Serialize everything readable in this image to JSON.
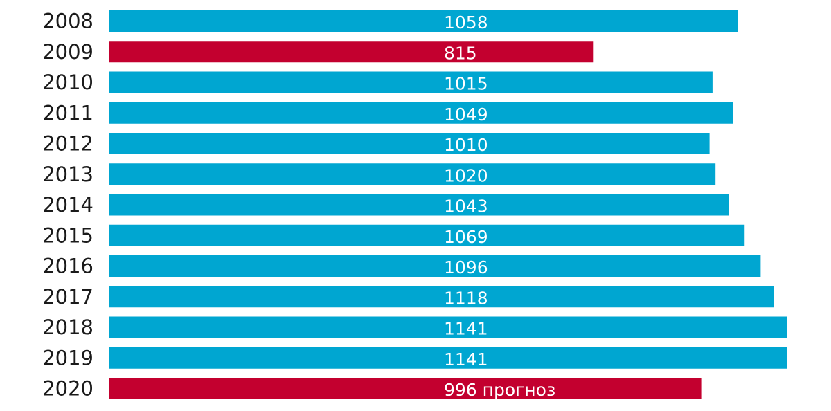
{
  "chart_data": {
    "type": "bar",
    "orientation": "horizontal",
    "categories": [
      "2008",
      "2009",
      "2010",
      "2011",
      "2012",
      "2013",
      "2014",
      "2015",
      "2016",
      "2017",
      "2018",
      "2019",
      "2020"
    ],
    "values": [
      1058,
      815,
      1015,
      1049,
      1010,
      1020,
      1043,
      1069,
      1096,
      1118,
      1141,
      1141,
      996
    ],
    "value_labels": [
      "1058",
      "815",
      "1015",
      "1049",
      "1010",
      "1020",
      "1043",
      "1069",
      "1096",
      "1118",
      "1141",
      "1141",
      "996 прогноз"
    ],
    "bar_colors": [
      "#00a6d1",
      "#c3002f",
      "#00a6d1",
      "#00a6d1",
      "#00a6d1",
      "#00a6d1",
      "#00a6d1",
      "#00a6d1",
      "#00a6d1",
      "#00a6d1",
      "#00a6d1",
      "#00a6d1",
      "#c3002f"
    ],
    "title": "",
    "xlabel": "",
    "ylabel": "",
    "xlim": [
      0,
      1141
    ],
    "grid": false,
    "legend": "none"
  }
}
